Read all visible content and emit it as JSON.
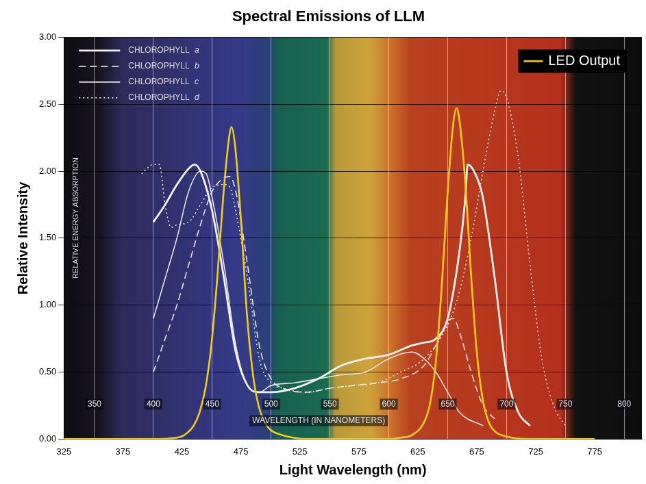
{
  "chart_data": [
    {
      "type": "line",
      "title": "Spectral Emissions of LLM",
      "x_label": "Light Wavelength (nm)",
      "y_label": "Relative Intensity",
      "xlim": [
        325,
        815
      ],
      "xticks": [
        325,
        375,
        425,
        475,
        525,
        575,
        625,
        675,
        725,
        775
      ],
      "ylim": [
        0,
        3
      ],
      "yticks": [
        {
          "value": 0,
          "label": "0.00"
        },
        {
          "value": 0.5,
          "label": "0.50"
        },
        {
          "value": 1,
          "label": "1.00"
        },
        {
          "value": 1.5,
          "label": "1.50"
        },
        {
          "value": 2,
          "label": "2.00"
        },
        {
          "value": 2.5,
          "label": "2.50"
        },
        {
          "value": 3,
          "label": "3.00"
        }
      ],
      "grid": true,
      "legend": "upper right",
      "series": [
        {
          "name": "LED Output",
          "color": "#f2cc16",
          "line_style": "solid",
          "x": [
            325,
            400,
            420,
            425,
            430,
            435,
            440,
            445,
            450,
            455,
            460,
            465,
            467,
            470,
            475,
            480,
            485,
            490,
            495,
            500,
            510,
            520,
            530,
            580,
            600,
            610,
            620,
            630,
            635,
            640,
            645,
            650,
            655,
            658,
            660,
            665,
            670,
            675,
            680,
            685,
            690,
            700,
            720,
            775
          ],
          "values": [
            0,
            0,
            0.01,
            0.02,
            0.05,
            0.1,
            0.2,
            0.38,
            0.7,
            1.2,
            1.8,
            2.25,
            2.33,
            2.2,
            1.65,
            0.95,
            0.5,
            0.25,
            0.13,
            0.07,
            0.03,
            0.01,
            0,
            0,
            0,
            0.01,
            0.03,
            0.12,
            0.25,
            0.55,
            1.1,
            1.8,
            2.35,
            2.47,
            2.4,
            1.95,
            1.25,
            0.65,
            0.3,
            0.13,
            0.06,
            0.02,
            0,
            0
          ]
        }
      ]
    },
    {
      "type": "line",
      "x_label": "WAVELENGTH (IN NANOMETERS)",
      "y_label": "RELATIVE ENERGY ABSORPTION",
      "xlim": [
        324,
        815
      ],
      "xticks": [
        350,
        400,
        450,
        500,
        550,
        600,
        650,
        700,
        750,
        800
      ],
      "ylim": [
        0,
        3
      ],
      "tick_labels": "x",
      "grid": true,
      "legend": "upper left",
      "series": [
        {
          "name": "CHLOROPHYLL a",
          "color": "#f2f2f2",
          "line_style": "solid",
          "x": [
            400,
            410,
            420,
            430,
            435,
            440,
            450,
            460,
            470,
            480,
            490,
            500,
            520,
            540,
            560,
            580,
            600,
            620,
            630,
            640,
            650,
            660,
            665,
            667,
            675,
            680,
            690,
            700,
            710,
            720
          ],
          "values": [
            1.62,
            1.75,
            1.9,
            2.02,
            2.05,
            2.0,
            1.7,
            1.2,
            0.65,
            0.4,
            0.35,
            0.35,
            0.38,
            0.45,
            0.55,
            0.6,
            0.63,
            0.7,
            0.72,
            0.75,
            0.9,
            1.4,
            1.8,
            2.05,
            1.95,
            1.8,
            1.2,
            0.5,
            0.2,
            0.1
          ]
        },
        {
          "name": "CHLOROPHYLL b",
          "color": "#e6e6e6",
          "line_style": "dashed",
          "x": [
            400,
            410,
            420,
            430,
            440,
            450,
            460,
            465,
            470,
            480,
            490,
            500,
            510,
            530,
            550,
            570,
            590,
            610,
            630,
            640,
            650,
            655,
            660,
            670,
            680,
            690
          ],
          "values": [
            0.5,
            0.75,
            1.0,
            1.3,
            1.6,
            1.85,
            1.95,
            1.96,
            1.85,
            1.3,
            0.7,
            0.45,
            0.38,
            0.35,
            0.38,
            0.4,
            0.42,
            0.45,
            0.55,
            0.7,
            0.88,
            0.9,
            0.8,
            0.5,
            0.25,
            0.15
          ]
        },
        {
          "name": "CHLOROPHYLL c",
          "color": "#e6e6e6",
          "line_style": "solid",
          "x": [
            400,
            410,
            420,
            430,
            440,
            445,
            450,
            460,
            470,
            480,
            490,
            500,
            520,
            540,
            560,
            580,
            600,
            620,
            630,
            640,
            650,
            660,
            680
          ],
          "values": [
            0.9,
            1.2,
            1.5,
            1.85,
            2.0,
            1.98,
            1.8,
            1.3,
            0.7,
            0.4,
            0.35,
            0.4,
            0.42,
            0.45,
            0.48,
            0.5,
            0.6,
            0.65,
            0.6,
            0.5,
            0.35,
            0.2,
            0.1
          ]
        },
        {
          "name": "CHLOROPHYLL d",
          "color": "#e6e6e6",
          "line_style": "dotted",
          "x": [
            390,
            400,
            405,
            410,
            415,
            420,
            430,
            440,
            450,
            460,
            465,
            470,
            480,
            490,
            500,
            510,
            530,
            550,
            570,
            590,
            610,
            630,
            650,
            660,
            670,
            680,
            690,
            695,
            700,
            710,
            720,
            730,
            740,
            750
          ],
          "values": [
            1.98,
            2.05,
            2.05,
            1.75,
            1.58,
            1.6,
            1.62,
            1.75,
            1.88,
            1.9,
            1.88,
            1.7,
            1.2,
            0.6,
            0.42,
            0.38,
            0.35,
            0.38,
            0.4,
            0.42,
            0.5,
            0.6,
            0.85,
            1.1,
            1.5,
            2.0,
            2.45,
            2.6,
            2.55,
            2.1,
            1.3,
            0.6,
            0.25,
            0.1
          ]
        }
      ]
    }
  ]
}
